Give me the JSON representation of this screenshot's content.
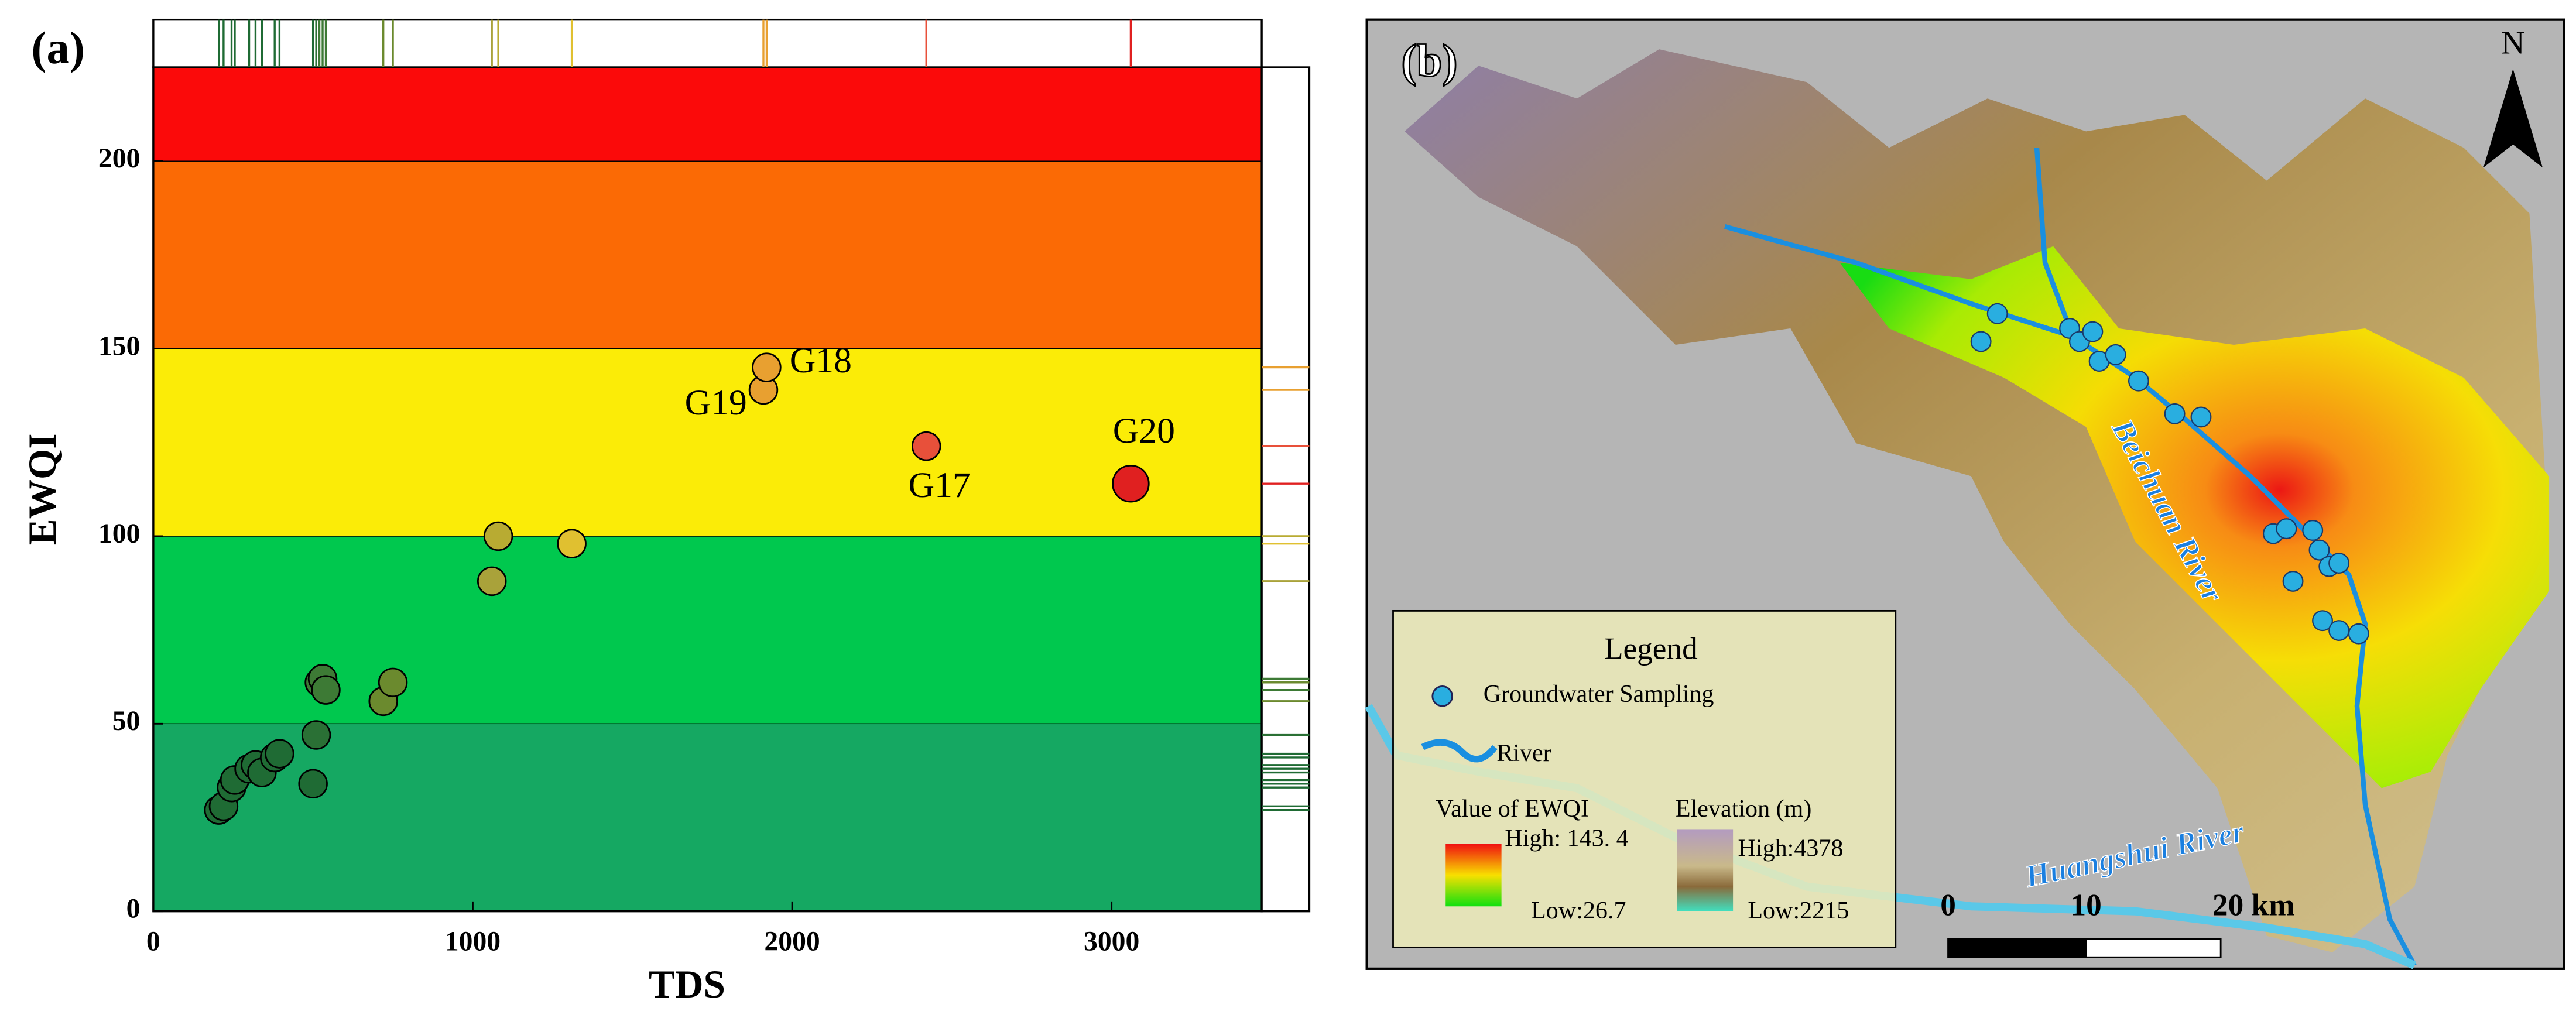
{
  "chart_data": {
    "type": "scatter",
    "panel_label": "(a)",
    "x_label": "TDS",
    "y_label": "EWQI",
    "xlim": [
      0,
      3470
    ],
    "ylim": [
      0,
      225
    ],
    "xticks": [
      0,
      1000,
      2000,
      3000
    ],
    "yticks": [
      0,
      50,
      100,
      150,
      200
    ],
    "bands": [
      {
        "from": 0,
        "to": 50,
        "color": "#15a862"
      },
      {
        "from": 50,
        "to": 100,
        "color": "#00c84e"
      },
      {
        "from": 100,
        "to": 150,
        "color": "#fbec07"
      },
      {
        "from": 150,
        "to": 200,
        "color": "#fb6a05"
      },
      {
        "from": 200,
        "to": 225,
        "color": "#fb0a0a"
      }
    ],
    "x": [
      205,
      220,
      245,
      255,
      300,
      320,
      340,
      380,
      395,
      500,
      510,
      520,
      530,
      540,
      720,
      750,
      1060,
      1080,
      1310,
      1910,
      1920,
      2420,
      3060
    ],
    "values": [
      27,
      28,
      33,
      35,
      38,
      39,
      37,
      41,
      42,
      34,
      47,
      61,
      62,
      59,
      56,
      61,
      88,
      100,
      98,
      139,
      145,
      124,
      114
    ],
    "colors": [
      "#1f6b34",
      "#1f6b34",
      "#1f6b34",
      "#1f6b34",
      "#1f6b34",
      "#1f6b34",
      "#1f6b34",
      "#1f6b34",
      "#1f6b34",
      "#1f6b34",
      "#2a7035",
      "#3d7a35",
      "#3d7a35",
      "#3d7a35",
      "#6b8a2e",
      "#6b8a2e",
      "#a9a23a",
      "#b8ab32",
      "#e0c030",
      "#e8a030",
      "#e8a030",
      "#e8503a",
      "#e02020"
    ],
    "labels": [
      null,
      null,
      null,
      null,
      null,
      null,
      null,
      null,
      null,
      null,
      null,
      null,
      null,
      null,
      null,
      null,
      null,
      null,
      null,
      "G19",
      "G18",
      "G17",
      "G20"
    ]
  },
  "map": {
    "panel_label": "(b)",
    "north": "N",
    "river_1": "Beichuan River",
    "river_2": "Huangshui River",
    "legend": {
      "title": "Legend",
      "sampling": "Groundwater Sampling",
      "river": "River",
      "ewqi_title": "Value of EWQI",
      "ewqi_high": "High: 143. 4",
      "ewqi_low": "Low:26.7",
      "elev_title": "Elevation (m)",
      "elev_high": "High:4378",
      "elev_low": "Low:2215"
    },
    "scale_labels": [
      "0",
      "10",
      "20 km"
    ]
  }
}
